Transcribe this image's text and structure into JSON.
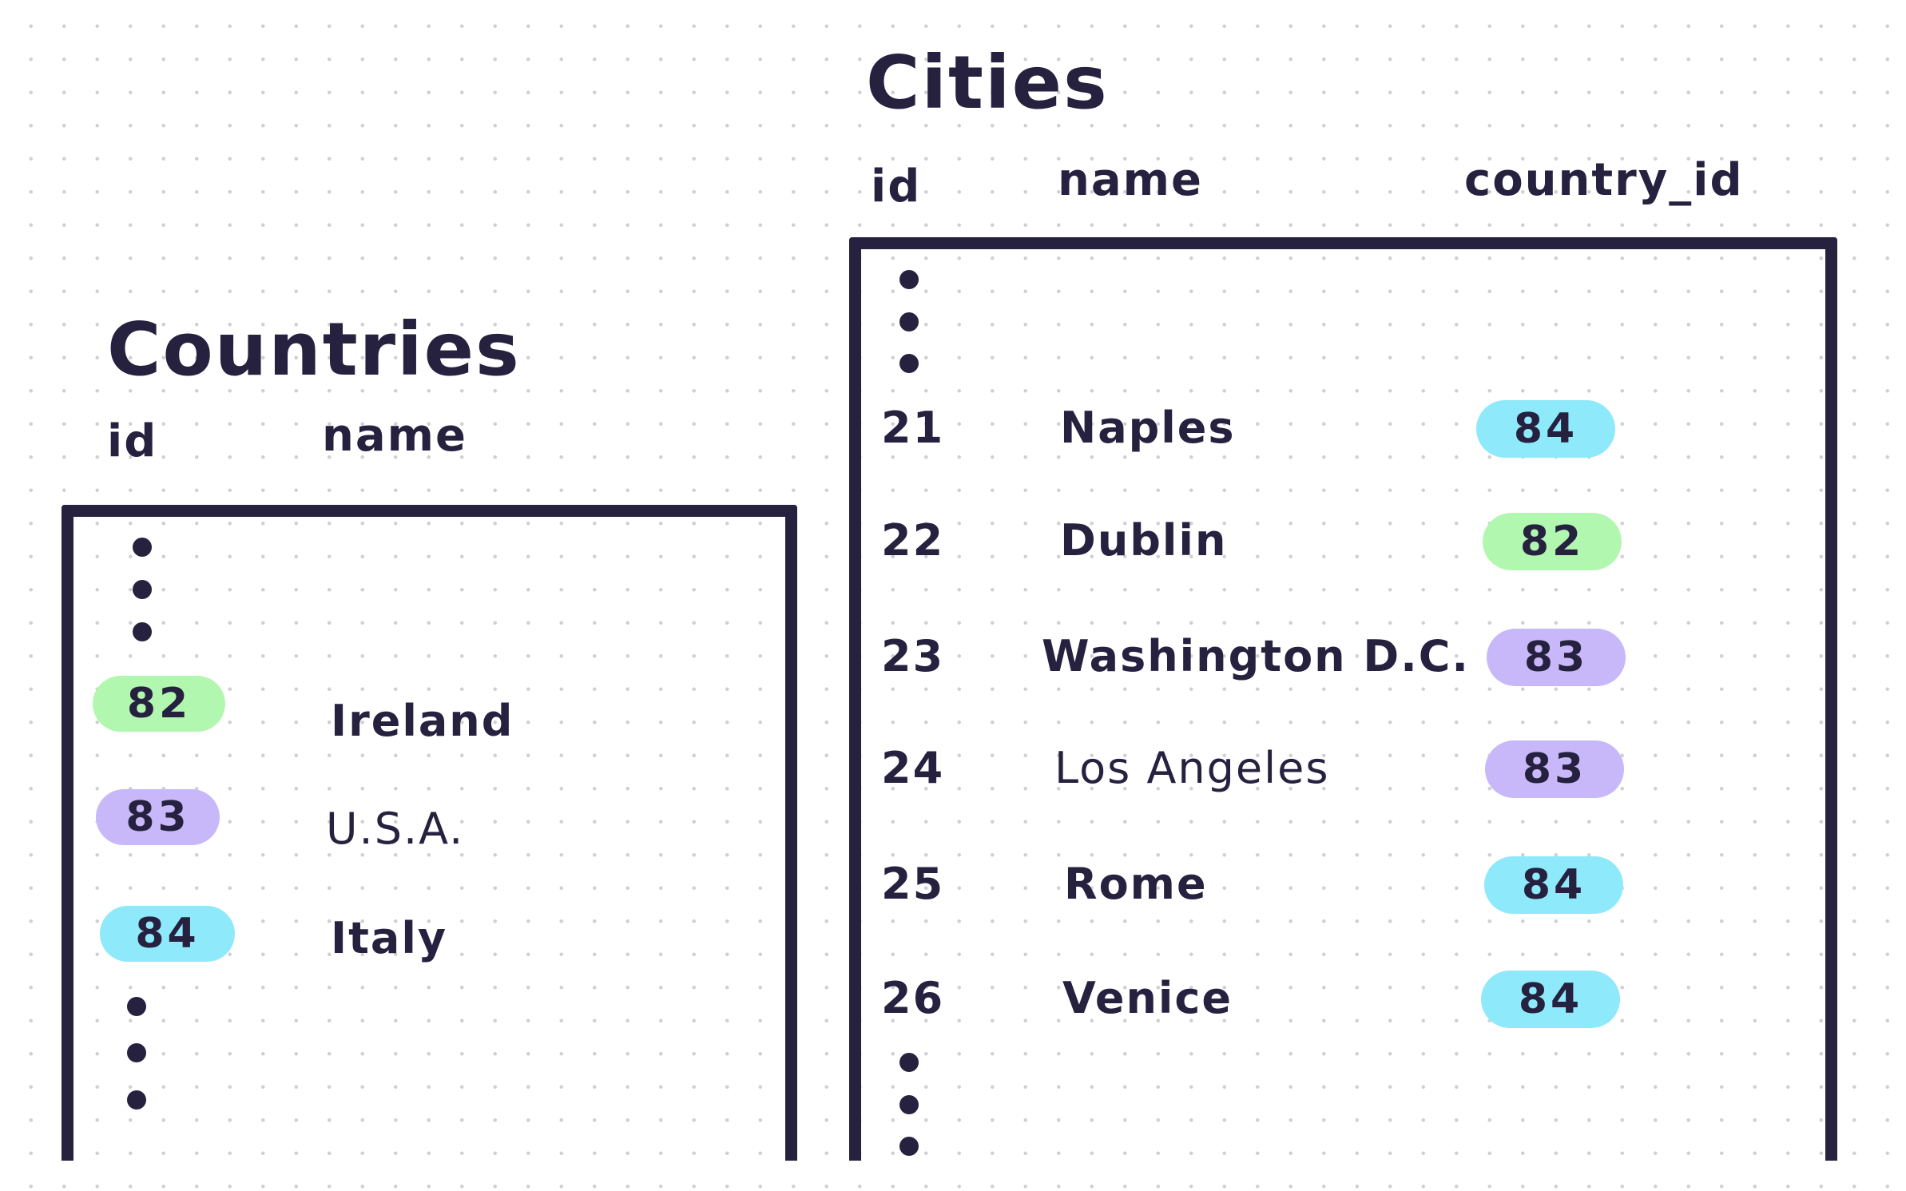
{
  "colors": {
    "ink": "#25213f",
    "82": "#b2f7b0",
    "83": "#c8b8fa",
    "84": "#8ee9fb"
  },
  "countries": {
    "title": "Countries",
    "headers": [
      "id",
      "name"
    ],
    "rows": [
      {
        "id": "82",
        "name": "Ireland"
      },
      {
        "id": "83",
        "name": "U.S.A."
      },
      {
        "id": "84",
        "name": "Italy"
      }
    ]
  },
  "cities": {
    "title": "Cities",
    "headers": [
      "id",
      "name",
      "country_id"
    ],
    "rows": [
      {
        "id": "21",
        "name": "Naples",
        "country_id": "84"
      },
      {
        "id": "22",
        "name": "Dublin",
        "country_id": "82"
      },
      {
        "id": "23",
        "name": "Washington D.C.",
        "country_id": "83"
      },
      {
        "id": "24",
        "name": "Los Angeles",
        "country_id": "83"
      },
      {
        "id": "25",
        "name": "Rome",
        "country_id": "84"
      },
      {
        "id": "26",
        "name": "Venice",
        "country_id": "84"
      }
    ]
  }
}
